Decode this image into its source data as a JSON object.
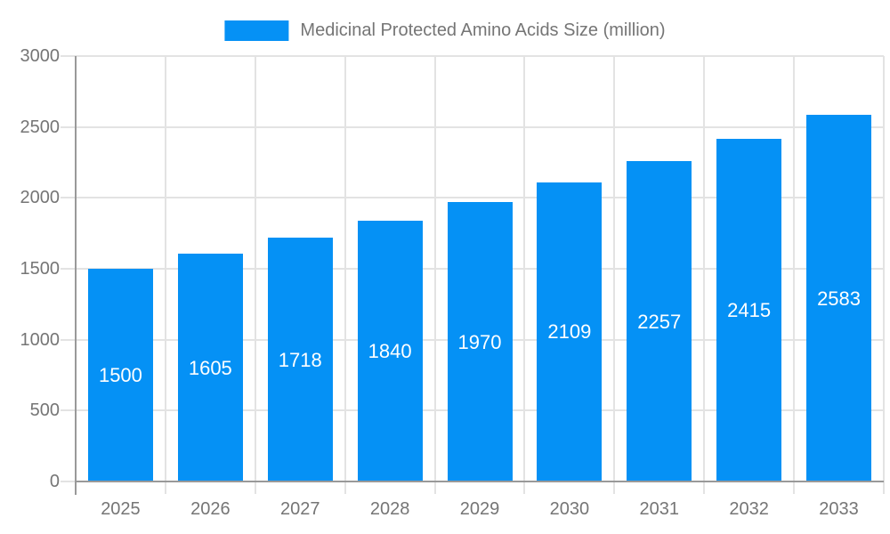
{
  "chart_data": {
    "type": "bar",
    "legend_label": "Medicinal Protected Amino Acids Size (million)",
    "legend_position": "top-center",
    "categories": [
      "2025",
      "2026",
      "2027",
      "2028",
      "2029",
      "2030",
      "2031",
      "2032",
      "2033"
    ],
    "values": [
      1500,
      1605,
      1718,
      1840,
      1970,
      2109,
      2257,
      2415,
      2583
    ],
    "xlabel": "",
    "ylabel": "",
    "ylim": [
      0,
      3000
    ],
    "yticks": [
      0,
      500,
      1000,
      1500,
      2000,
      2500,
      3000
    ],
    "grid": true,
    "value_labels_shown": true,
    "colors": {
      "bar": "#0591f5",
      "bar_label": "#ffffff",
      "axis_text": "#757575",
      "axis_line": "#999999",
      "gridline": "#e3e3e3",
      "background": "#ffffff"
    }
  }
}
